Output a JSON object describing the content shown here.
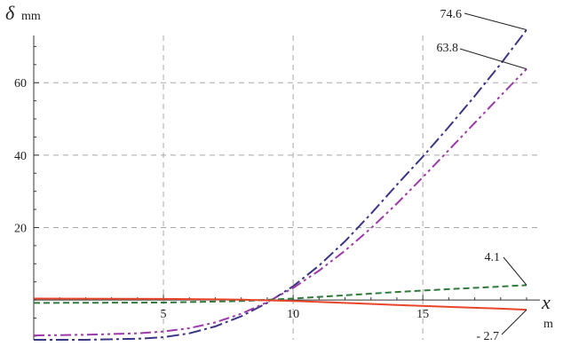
{
  "chart_data": {
    "type": "line",
    "y_symbol": "δ",
    "y_unit": "mm",
    "x_symbol": "x",
    "x_unit": "m",
    "xlim": [
      0,
      19
    ],
    "ylim": [
      -11,
      75
    ],
    "x_ticks": [
      5,
      10,
      15
    ],
    "y_ticks": [
      20,
      40,
      60
    ],
    "grid": true,
    "series": [
      {
        "color": "#3a3585",
        "dash": "dash-dot",
        "points": [
          [
            0,
            -11
          ],
          [
            2,
            -11
          ],
          [
            4,
            -10.7
          ],
          [
            5,
            -10.3
          ],
          [
            6,
            -9.2
          ],
          [
            7,
            -7.3
          ],
          [
            8,
            -4.5
          ],
          [
            9,
            -0.8
          ],
          [
            10,
            3.8
          ],
          [
            11,
            9.5
          ],
          [
            12,
            16.2
          ],
          [
            13,
            23.8
          ],
          [
            14,
            31.8
          ],
          [
            15,
            39.6
          ],
          [
            16,
            47.8
          ],
          [
            17,
            56.3
          ],
          [
            18,
            65.2
          ],
          [
            19,
            74.6
          ]
        ]
      },
      {
        "color": "#9b3aa8",
        "dash": "dash-dot-dot",
        "points": [
          [
            0,
            -9.8
          ],
          [
            2,
            -9.6
          ],
          [
            4,
            -9.2
          ],
          [
            5,
            -8.7
          ],
          [
            6,
            -7.8
          ],
          [
            7,
            -6.2
          ],
          [
            8,
            -3.8
          ],
          [
            9,
            -0.6
          ],
          [
            10,
            3.3
          ],
          [
            11,
            8.1
          ],
          [
            12,
            13.6
          ],
          [
            13,
            19.8
          ],
          [
            14,
            26.6
          ],
          [
            15,
            33.9
          ],
          [
            16,
            41.4
          ],
          [
            17,
            48.9
          ],
          [
            18,
            56.4
          ],
          [
            19,
            63.8
          ]
        ]
      },
      {
        "color": "#2f7a3c",
        "dash": "dashed",
        "points": [
          [
            0,
            -0.8
          ],
          [
            5,
            -0.7
          ],
          [
            8,
            -0.3
          ],
          [
            10,
            0.4
          ],
          [
            12,
            1.3
          ],
          [
            14,
            2.2
          ],
          [
            16,
            3.0
          ],
          [
            18,
            3.7
          ],
          [
            19,
            4.1
          ]
        ]
      },
      {
        "color": "#e8462a",
        "dash": "solid",
        "points": [
          [
            0,
            0.4
          ],
          [
            5,
            0.3
          ],
          [
            8,
            0.1
          ],
          [
            10,
            -0.3
          ],
          [
            12,
            -0.8
          ],
          [
            14,
            -1.4
          ],
          [
            16,
            -1.9
          ],
          [
            18,
            -2.4
          ],
          [
            19,
            -2.7
          ]
        ]
      }
    ],
    "annotations": [
      {
        "text": "74.6",
        "x": 19,
        "y": 74.6
      },
      {
        "text": "63.8",
        "x": 19,
        "y": 63.8
      },
      {
        "text": "4.1",
        "x": 19,
        "y": 4.1
      },
      {
        "text": "- 2.7",
        "x": 19,
        "y": -2.7
      }
    ]
  }
}
